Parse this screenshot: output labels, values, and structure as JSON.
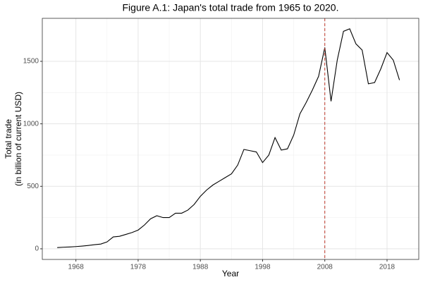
{
  "chart_data": {
    "type": "line",
    "title": "Figure A.1: Japan's total trade from 1965 to 2020.",
    "x_label": "Year",
    "y_label": [
      "Total trade",
      "(in billion of current USD)"
    ],
    "x": [
      1965,
      1966,
      1967,
      1968,
      1969,
      1970,
      1971,
      1972,
      1973,
      1974,
      1975,
      1976,
      1977,
      1978,
      1979,
      1980,
      1981,
      1982,
      1983,
      1984,
      1985,
      1986,
      1987,
      1988,
      1989,
      1990,
      1991,
      1992,
      1993,
      1994,
      1995,
      1996,
      1997,
      1998,
      1999,
      2000,
      2001,
      2002,
      2003,
      2004,
      2005,
      2006,
      2007,
      2008,
      2009,
      2010,
      2011,
      2012,
      2013,
      2014,
      2015,
      2016,
      2017,
      2018,
      2019,
      2020
    ],
    "series": [
      {
        "color": "#000000",
        "values": [
          10,
          13,
          15,
          18,
          22,
          27,
          33,
          38,
          55,
          95,
          100,
          115,
          130,
          150,
          190,
          240,
          265,
          250,
          250,
          285,
          285,
          310,
          355,
          420,
          470,
          510,
          540,
          570,
          600,
          670,
          795,
          785,
          775,
          690,
          750,
          890,
          790,
          800,
          910,
          1080,
          1170,
          1270,
          1380,
          1610,
          1180,
          1510,
          1740,
          1760,
          1640,
          1590,
          1320,
          1330,
          1440,
          1570,
          1510,
          1350
        ]
      }
    ],
    "xlim": [
      1962.6,
      2023.1
    ],
    "ylim": [
      -85,
      1844
    ],
    "xticks": [
      1968,
      1978,
      1988,
      1998,
      2008,
      2018
    ],
    "yticks": [
      0,
      500,
      1000,
      1500
    ],
    "grid": true,
    "vline": {
      "value": 2008,
      "color": "#c0392b"
    }
  }
}
